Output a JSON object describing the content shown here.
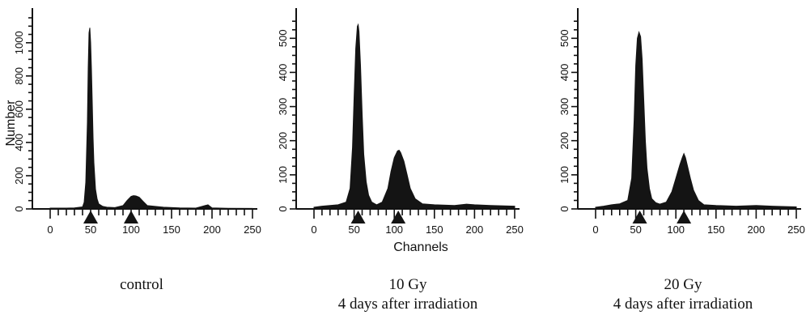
{
  "chart_data": [
    {
      "type": "area",
      "ylabel": "Number",
      "xlabel": "",
      "caption_lines": [
        "control"
      ],
      "xlim": [
        0,
        250
      ],
      "ylim": [
        0,
        1150
      ],
      "xticks": [
        0,
        50,
        100,
        150,
        200,
        250
      ],
      "yticks": [
        0,
        200,
        400,
        600,
        800,
        1000
      ],
      "marker_channels": [
        50,
        100
      ],
      "series": [
        {
          "x": [
            0,
            20,
            30,
            40,
            42,
            44,
            46,
            47,
            48,
            49,
            50,
            51,
            52,
            53,
            54,
            56,
            58,
            60,
            65,
            70,
            80,
            90,
            95,
            100,
            103,
            106,
            110,
            115,
            120,
            140,
            160,
            180,
            195,
            200,
            220,
            250
          ],
          "y": [
            5,
            5,
            6,
            12,
            40,
            160,
            520,
            850,
            1060,
            1090,
            1000,
            840,
            640,
            430,
            280,
            120,
            60,
            30,
            15,
            10,
            8,
            20,
            50,
            75,
            80,
            78,
            70,
            45,
            20,
            10,
            6,
            5,
            25,
            6,
            4,
            3
          ]
        }
      ]
    },
    {
      "type": "area",
      "ylabel": "",
      "xlabel": "Channels",
      "caption_lines": [
        "10 Gy",
        "4 days after irradiation"
      ],
      "xlim": [
        0,
        250
      ],
      "ylim": [
        0,
        560
      ],
      "xticks": [
        0,
        50,
        100,
        150,
        200,
        250
      ],
      "yticks": [
        0,
        100,
        200,
        300,
        400,
        500
      ],
      "marker_channels": [
        55,
        105
      ],
      "series": [
        {
          "x": [
            0,
            10,
            20,
            30,
            40,
            45,
            48,
            50,
            52,
            54,
            55,
            56,
            58,
            60,
            62,
            65,
            68,
            72,
            78,
            85,
            92,
            96,
            100,
            104,
            106,
            108,
            112,
            116,
            120,
            126,
            135,
            150,
            175,
            190,
            200,
            220,
            250
          ],
          "y": [
            5,
            8,
            10,
            12,
            20,
            60,
            180,
            330,
            470,
            535,
            540,
            520,
            420,
            280,
            160,
            80,
            40,
            20,
            12,
            20,
            60,
            110,
            150,
            170,
            172,
            165,
            140,
            100,
            60,
            30,
            15,
            12,
            10,
            14,
            12,
            10,
            8
          ]
        }
      ]
    },
    {
      "type": "area",
      "ylabel": "",
      "xlabel": "",
      "caption_lines": [
        "20 Gy",
        "4 days after irradiation"
      ],
      "xlim": [
        0,
        250
      ],
      "ylim": [
        0,
        560
      ],
      "xticks": [
        0,
        50,
        100,
        150,
        200,
        250
      ],
      "yticks": [
        0,
        100,
        200,
        300,
        400,
        500
      ],
      "marker_channels": [
        55,
        110
      ],
      "series": [
        {
          "x": [
            0,
            10,
            20,
            30,
            40,
            45,
            48,
            50,
            52,
            54,
            56,
            58,
            60,
            62,
            64,
            67,
            70,
            75,
            80,
            88,
            95,
            100,
            105,
            108,
            110,
            112,
            115,
            118,
            122,
            128,
            135,
            150,
            175,
            200,
            220,
            250
          ],
          "y": [
            5,
            8,
            12,
            15,
            25,
            90,
            260,
            420,
            500,
            518,
            505,
            440,
            320,
            200,
            120,
            60,
            30,
            18,
            14,
            20,
            50,
            90,
            130,
            150,
            162,
            150,
            120,
            90,
            55,
            25,
            12,
            10,
            8,
            10,
            8,
            6
          ]
        }
      ]
    }
  ]
}
